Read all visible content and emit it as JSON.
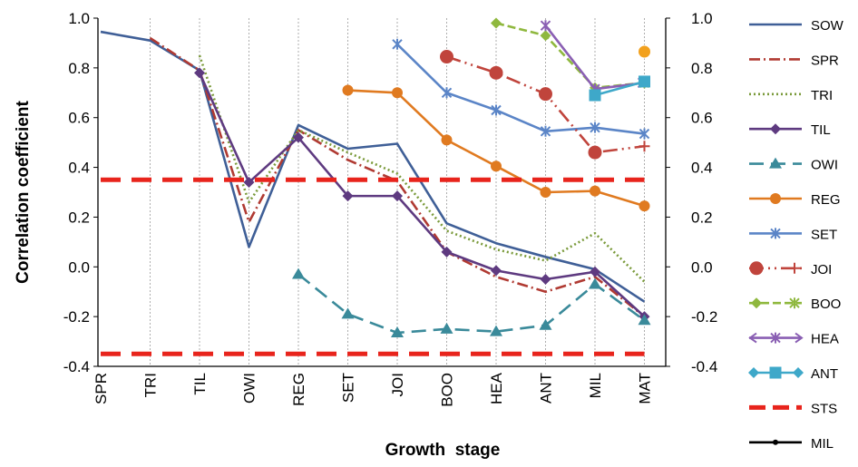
{
  "chart_data": {
    "type": "line",
    "title": "",
    "xlabel": "Growth  stage",
    "ylabel": "Correlation coefficient",
    "categories": [
      "SPR",
      "TRI",
      "TIL",
      "OWI",
      "REG",
      "SET",
      "JOI",
      "BOO",
      "HEA",
      "ANT",
      "MIL",
      "MAT"
    ],
    "ylim": [
      -0.4,
      1.0
    ],
    "yticks": [
      "1.0",
      "0.8",
      "0.6",
      "0.4",
      "0.2",
      "0.0",
      "-0.2",
      "-0.4"
    ],
    "yticks_right": [
      "1.0",
      "0.8",
      "0.6",
      "0.4",
      "0.2",
      "0.0",
      "-0.2",
      "-0.4"
    ],
    "tick_values": [
      1.0,
      0.8,
      0.6,
      0.4,
      0.2,
      0.0,
      -0.2,
      -0.4
    ],
    "grid": "vertical",
    "legend_position": "right",
    "series": [
      {
        "name": "SOW",
        "color": "#3f5f97",
        "dash": "",
        "marker": "none",
        "values": [
          0.945,
          0.91,
          0.79,
          0.08,
          0.57,
          0.475,
          0.495,
          0.175,
          0.095,
          0.04,
          -0.01,
          -0.14
        ]
      },
      {
        "name": "SPR",
        "color": "#b03a32",
        "dash": "12,4,2,4",
        "marker": "none",
        "values": [
          null,
          0.92,
          0.79,
          0.18,
          0.55,
          0.43,
          0.345,
          0.06,
          -0.04,
          -0.1,
          -0.04,
          -0.2
        ]
      },
      {
        "name": "TRI",
        "color": "#7a9a3a",
        "dash": "2,3",
        "marker": "none",
        "values": [
          null,
          null,
          0.85,
          0.26,
          0.55,
          0.46,
          0.375,
          0.145,
          0.07,
          0.025,
          0.135,
          -0.06
        ]
      },
      {
        "name": "TIL",
        "color": "#5e3a80",
        "dash": "",
        "marker": "diamond",
        "values": [
          null,
          null,
          0.78,
          0.34,
          0.52,
          0.285,
          0.285,
          0.06,
          -0.015,
          -0.05,
          -0.02,
          -0.2
        ]
      },
      {
        "name": "OWI",
        "color": "#3a8a9a",
        "dash": "16,8",
        "marker": "triangle",
        "values": [
          null,
          null,
          null,
          null,
          -0.03,
          -0.19,
          -0.265,
          -0.25,
          -0.26,
          -0.235,
          -0.07,
          -0.215
        ]
      },
      {
        "name": "REG",
        "color": "#e07a20",
        "dash": "",
        "marker": "circle",
        "values": [
          null,
          null,
          null,
          null,
          null,
          0.71,
          0.7,
          0.51,
          0.405,
          0.3,
          0.305,
          0.245
        ]
      },
      {
        "name": "SET",
        "color": "#5b85c7",
        "dash": "",
        "marker": "x",
        "values": [
          null,
          null,
          null,
          null,
          null,
          null,
          0.895,
          0.7,
          0.63,
          0.545,
          0.56,
          0.535
        ]
      },
      {
        "name": "JOI",
        "color": "#c0443c",
        "dash": "16,5,2,5,2,5",
        "marker": "bigcircle",
        "marker_last": "plus",
        "values": [
          null,
          null,
          null,
          null,
          null,
          null,
          null,
          0.845,
          0.78,
          0.695,
          0.46,
          0.485
        ]
      },
      {
        "name": "BOO",
        "color": "#8fb83e",
        "dash": "9,4",
        "marker": "diamond",
        "marker_last": "x",
        "values": [
          null,
          null,
          null,
          null,
          null,
          null,
          null,
          null,
          0.98,
          0.93,
          0.72,
          0.74
        ]
      },
      {
        "name": "HEA",
        "color": "#8a5fb3",
        "dash": "",
        "marker": "x",
        "marker_last": "arrow",
        "values": [
          null,
          null,
          null,
          null,
          null,
          null,
          null,
          null,
          null,
          0.97,
          0.715,
          0.74
        ]
      },
      {
        "name": "ANT",
        "color": "#3ea8c9",
        "dash": "",
        "marker": "square",
        "values": [
          null,
          null,
          null,
          null,
          null,
          null,
          null,
          null,
          null,
          null,
          0.69,
          0.745
        ]
      },
      {
        "name": "STS",
        "color": "#e8241c",
        "dash": "22,12",
        "marker": "none",
        "width": 5,
        "values": [
          0.35,
          0.35,
          0.35,
          0.35,
          0.35,
          0.35,
          0.35,
          0.35,
          0.35,
          0.35,
          0.35,
          0.35
        ]
      },
      {
        "name": "STS",
        "color": "#e8241c",
        "dash": "22,12",
        "marker": "none",
        "width": 5,
        "legend": false,
        "values": [
          -0.35,
          -0.35,
          -0.35,
          -0.35,
          -0.35,
          -0.35,
          -0.35,
          -0.35,
          -0.35,
          -0.35,
          -0.35,
          -0.35
        ]
      },
      {
        "name": "MIL",
        "color": "#f2a11e",
        "dash": "",
        "marker": "dot",
        "values": [
          null,
          null,
          null,
          null,
          null,
          null,
          null,
          null,
          null,
          null,
          null,
          0.865
        ]
      }
    ]
  }
}
